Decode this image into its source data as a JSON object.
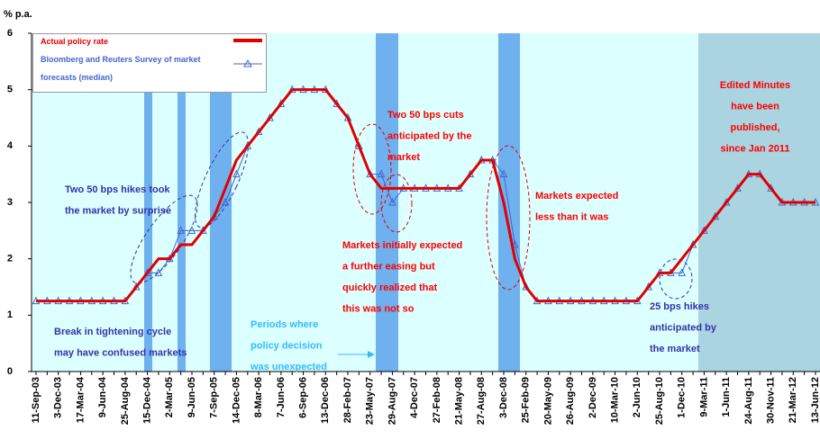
{
  "chart_data": {
    "type": "line",
    "y_label": "% p.a.",
    "categories": [
      "11-Sep-03",
      null,
      "3-Dec-03",
      null,
      "17-Mar-04",
      null,
      "9-Jun-04",
      null,
      "25-Aug-04",
      null,
      "15-Dec-04",
      null,
      "2-Mar-05",
      null,
      "9-Jun-05",
      null,
      "7-Sep-05",
      null,
      "14-Dec-05",
      null,
      "8-Mar-06",
      null,
      "7-Jun-06",
      null,
      "6-Sep-06",
      null,
      "13-Dec-06",
      null,
      "28-Feb-07",
      null,
      "23-May-07",
      null,
      "29-Aug-07",
      null,
      "4-Dec-07",
      null,
      "27-Feb-08",
      null,
      "21-May-08",
      null,
      "27-Aug-08",
      null,
      "3-Dec-08",
      null,
      "25-Feb-09",
      null,
      "20-May-09",
      null,
      "26-Aug-09",
      null,
      "2-Dec-09",
      null,
      "10-Mar-10",
      null,
      "2-Jun-10",
      null,
      "25-Aug-10",
      null,
      "1-Dec-10",
      null,
      "9-Mar-11",
      null,
      "1-Jun-11",
      null,
      "24-Aug-11",
      null,
      "30-Nov-11",
      null,
      "21-Mar-12",
      null,
      "13-Jun-12"
    ],
    "series": [
      {
        "name": "Actual policy rate",
        "color": "#e00000",
        "marker": "none",
        "values": [
          1.25,
          1.25,
          1.25,
          1.25,
          1.25,
          1.25,
          1.25,
          1.25,
          1.25,
          1.5,
          1.75,
          2,
          2,
          2.25,
          2.25,
          2.5,
          2.75,
          3.25,
          3.75,
          4,
          4.25,
          4.5,
          4.75,
          5,
          5,
          5,
          5,
          4.75,
          4.5,
          4,
          3.5,
          3.25,
          3.25,
          3.25,
          3.25,
          3.25,
          3.25,
          3.25,
          3.25,
          3.5,
          3.75,
          3.75,
          3,
          2,
          1.5,
          1.25,
          1.25,
          1.25,
          1.25,
          1.25,
          1.25,
          1.25,
          1.25,
          1.25,
          1.25,
          1.5,
          1.75,
          1.75,
          2,
          2.25,
          2.5,
          2.75,
          3,
          3.25,
          3.5,
          3.5,
          3.25,
          3,
          3,
          3,
          3
        ]
      },
      {
        "name": "Bloomberg and Reuters Survey of market forecasts (median)",
        "color": "#4466cc",
        "marker": "triangle",
        "values": [
          1.25,
          1.25,
          1.25,
          1.25,
          1.25,
          1.25,
          1.25,
          1.25,
          1.25,
          1.5,
          1.75,
          1.75,
          2,
          2.5,
          2.5,
          2.5,
          2.75,
          3,
          3.5,
          4,
          4.25,
          4.5,
          4.75,
          5,
          5,
          5,
          5,
          4.75,
          4.5,
          4,
          3.5,
          3.5,
          3,
          3.25,
          3.25,
          3.25,
          3.25,
          3.25,
          3.25,
          3.5,
          3.75,
          3.75,
          3.5,
          2.25,
          1.5,
          1.25,
          1.25,
          1.25,
          1.25,
          1.25,
          1.25,
          1.25,
          1.25,
          1.25,
          1.25,
          1.5,
          1.75,
          1.75,
          1.75,
          2.25,
          2.5,
          2.75,
          3,
          3.25,
          3.5,
          3.5,
          3.25,
          3,
          3,
          3,
          3
        ]
      }
    ],
    "ylim": [
      0,
      6
    ],
    "yticks": [
      0,
      1,
      2,
      3,
      4,
      5,
      6
    ],
    "annotations": [
      {
        "lines": [
          "Two 50 bps cuts",
          "anticipated by the",
          "market"
        ],
        "color": "#ff0000"
      },
      {
        "lines": [
          "Markets expected",
          "less than it was"
        ],
        "color": "#ff0000"
      },
      {
        "lines": [
          "Markets initially expected",
          "a further easing but",
          "quickly realized that",
          "this was not so"
        ],
        "color": "#ff0000"
      },
      {
        "lines": [
          "Edited Minutes",
          "have been",
          "published,",
          "since Jan 2011"
        ],
        "color": "#ff0000"
      },
      {
        "lines": [
          "Two 50 bps hikes took",
          "the market by surprise"
        ],
        "color": "#3333aa"
      },
      {
        "lines": [
          "Break in tightening cycle",
          "may have confused markets"
        ],
        "color": "#3333aa"
      },
      {
        "lines": [
          "Periods where",
          "policy decision",
          "was unexpected"
        ],
        "color": "#33bbff"
      },
      {
        "lines": [
          "25 bps hikes",
          "anticipated by",
          "the market"
        ],
        "color": "#3333aa"
      }
    ]
  }
}
